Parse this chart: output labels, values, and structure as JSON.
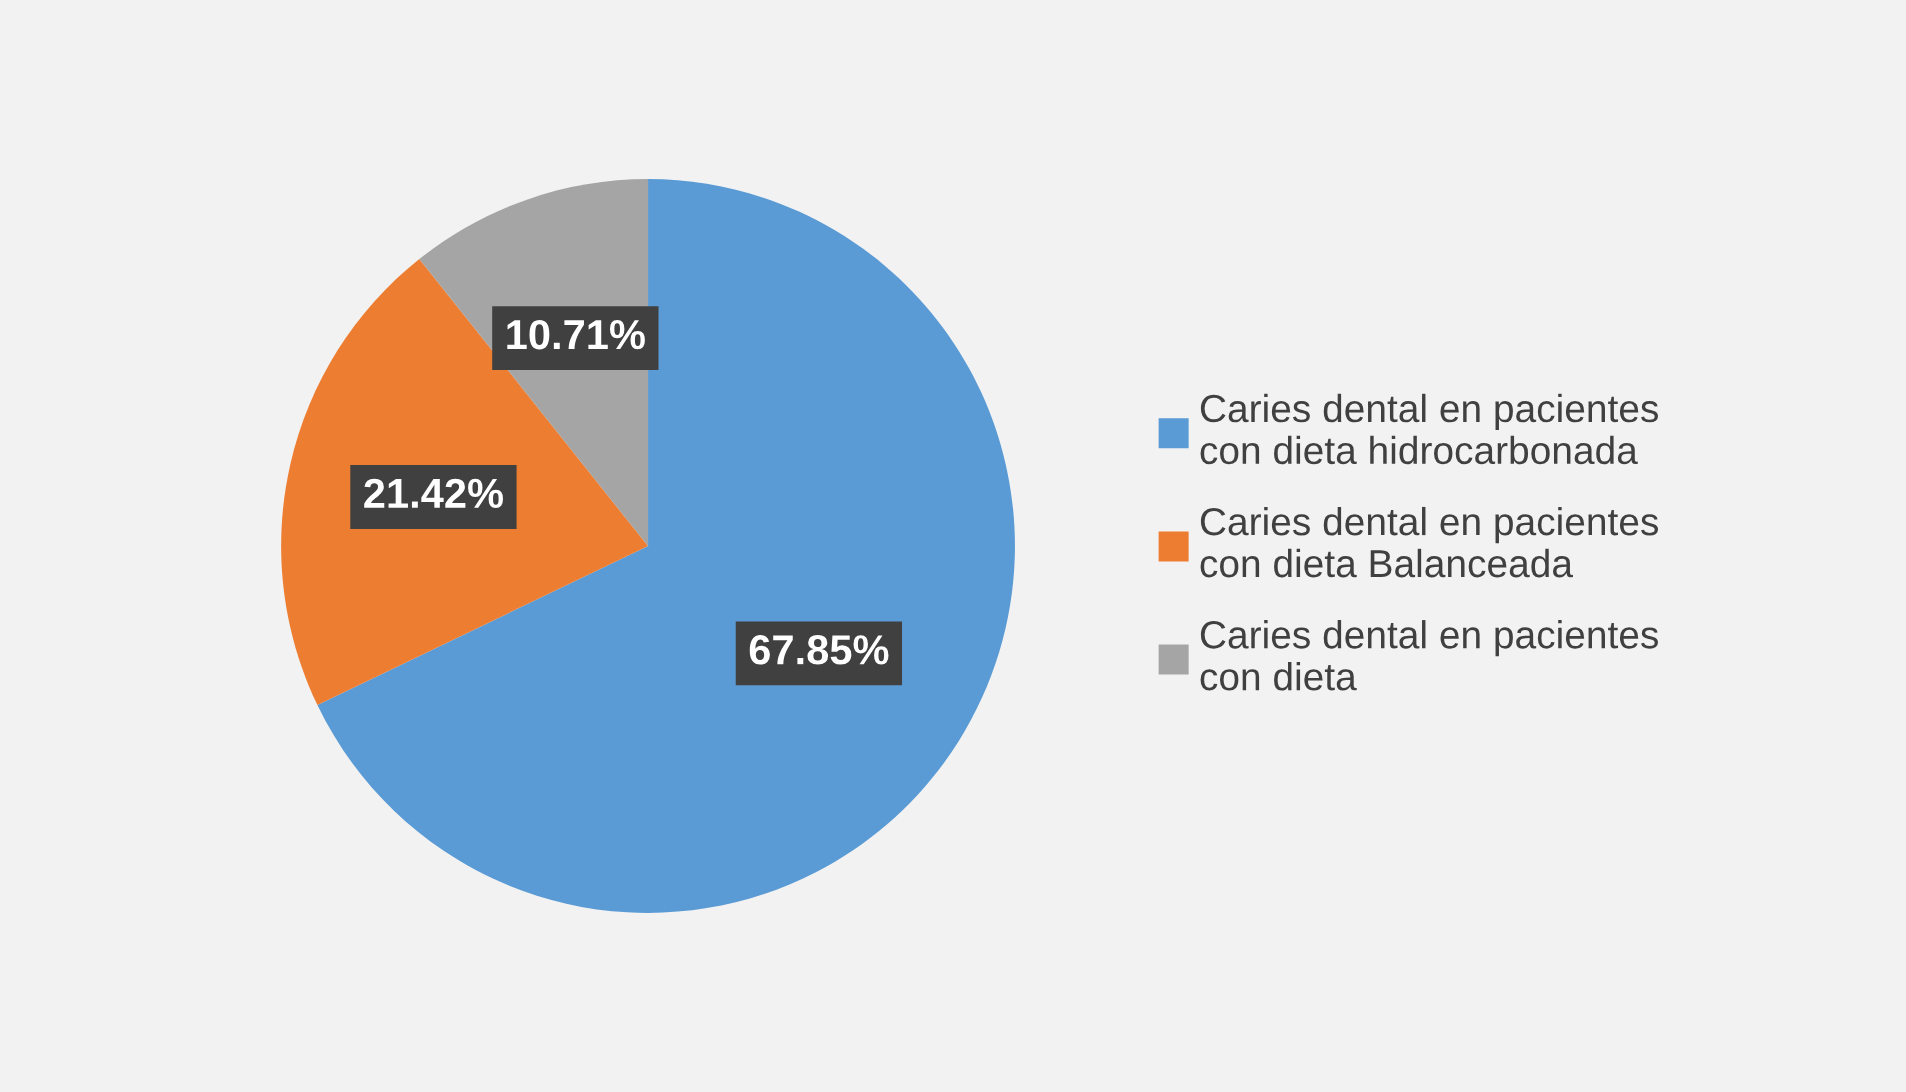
{
  "chart_data": {
    "type": "pie",
    "categories": [
      "Caries dental en pacientes\ncon dieta hidrocarbonada",
      "Caries dental en pacientes\ncon dieta Balanceada",
      "Caries dental en pacientes\ncon dieta"
    ],
    "values": [
      67.85,
      21.42,
      10.71
    ],
    "value_labels": [
      "67.85%",
      "21.42%",
      "10.71%"
    ],
    "colors": [
      "#5b9bd5",
      "#ed7d31",
      "#a5a5a5"
    ],
    "legend": "right"
  }
}
